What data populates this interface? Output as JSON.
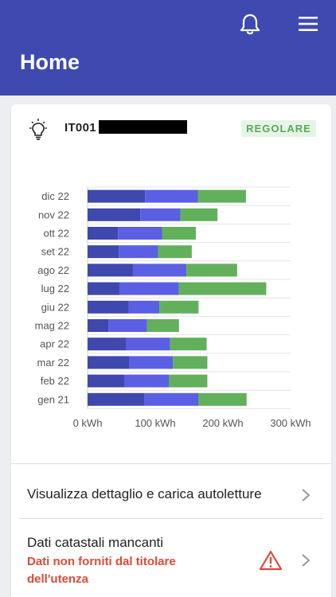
{
  "header": {
    "title": "Home",
    "bell_icon": "bell-icon",
    "menu_icon": "hamburger-menu-icon",
    "background": "#3f4ab0"
  },
  "supply": {
    "code_prefix": "IT001",
    "status_badge": "REGOLARE",
    "icon": "lightbulb-icon"
  },
  "chart_data": {
    "type": "bar",
    "orientation": "horizontal",
    "stacked": true,
    "categories": [
      "dic 22",
      "nov 22",
      "ott 22",
      "set 22",
      "ago 22",
      "lug 22",
      "giu 22",
      "mag 22",
      "apr 22",
      "mar 22",
      "feb 22",
      "gen 21"
    ],
    "series": [
      {
        "color": "#3e48ad",
        "values": [
          85,
          78,
          45,
          46,
          67,
          47,
          61,
          31,
          57,
          62,
          55,
          84
        ]
      },
      {
        "color": "#5b5fe4",
        "values": [
          78,
          59,
          65,
          58,
          79,
          88,
          45,
          57,
          65,
          64,
          65,
          80
        ]
      },
      {
        "color": "#62b05b",
        "values": [
          71,
          55,
          50,
          50,
          75,
          129,
          58,
          47,
          54,
          51,
          57,
          71
        ]
      }
    ],
    "xlim": [
      0,
      300
    ],
    "xticks": [
      "0 kWh",
      "100 kWh",
      "200 kWh",
      "300 kWh"
    ],
    "grid": true
  },
  "rows": {
    "detail_label": "Visualizza dettaglio e carica autoletture",
    "cadastral_label": "Dati catastali mancanti",
    "cadastral_sub": "Dati non forniti dal titolare dell'utenza"
  }
}
